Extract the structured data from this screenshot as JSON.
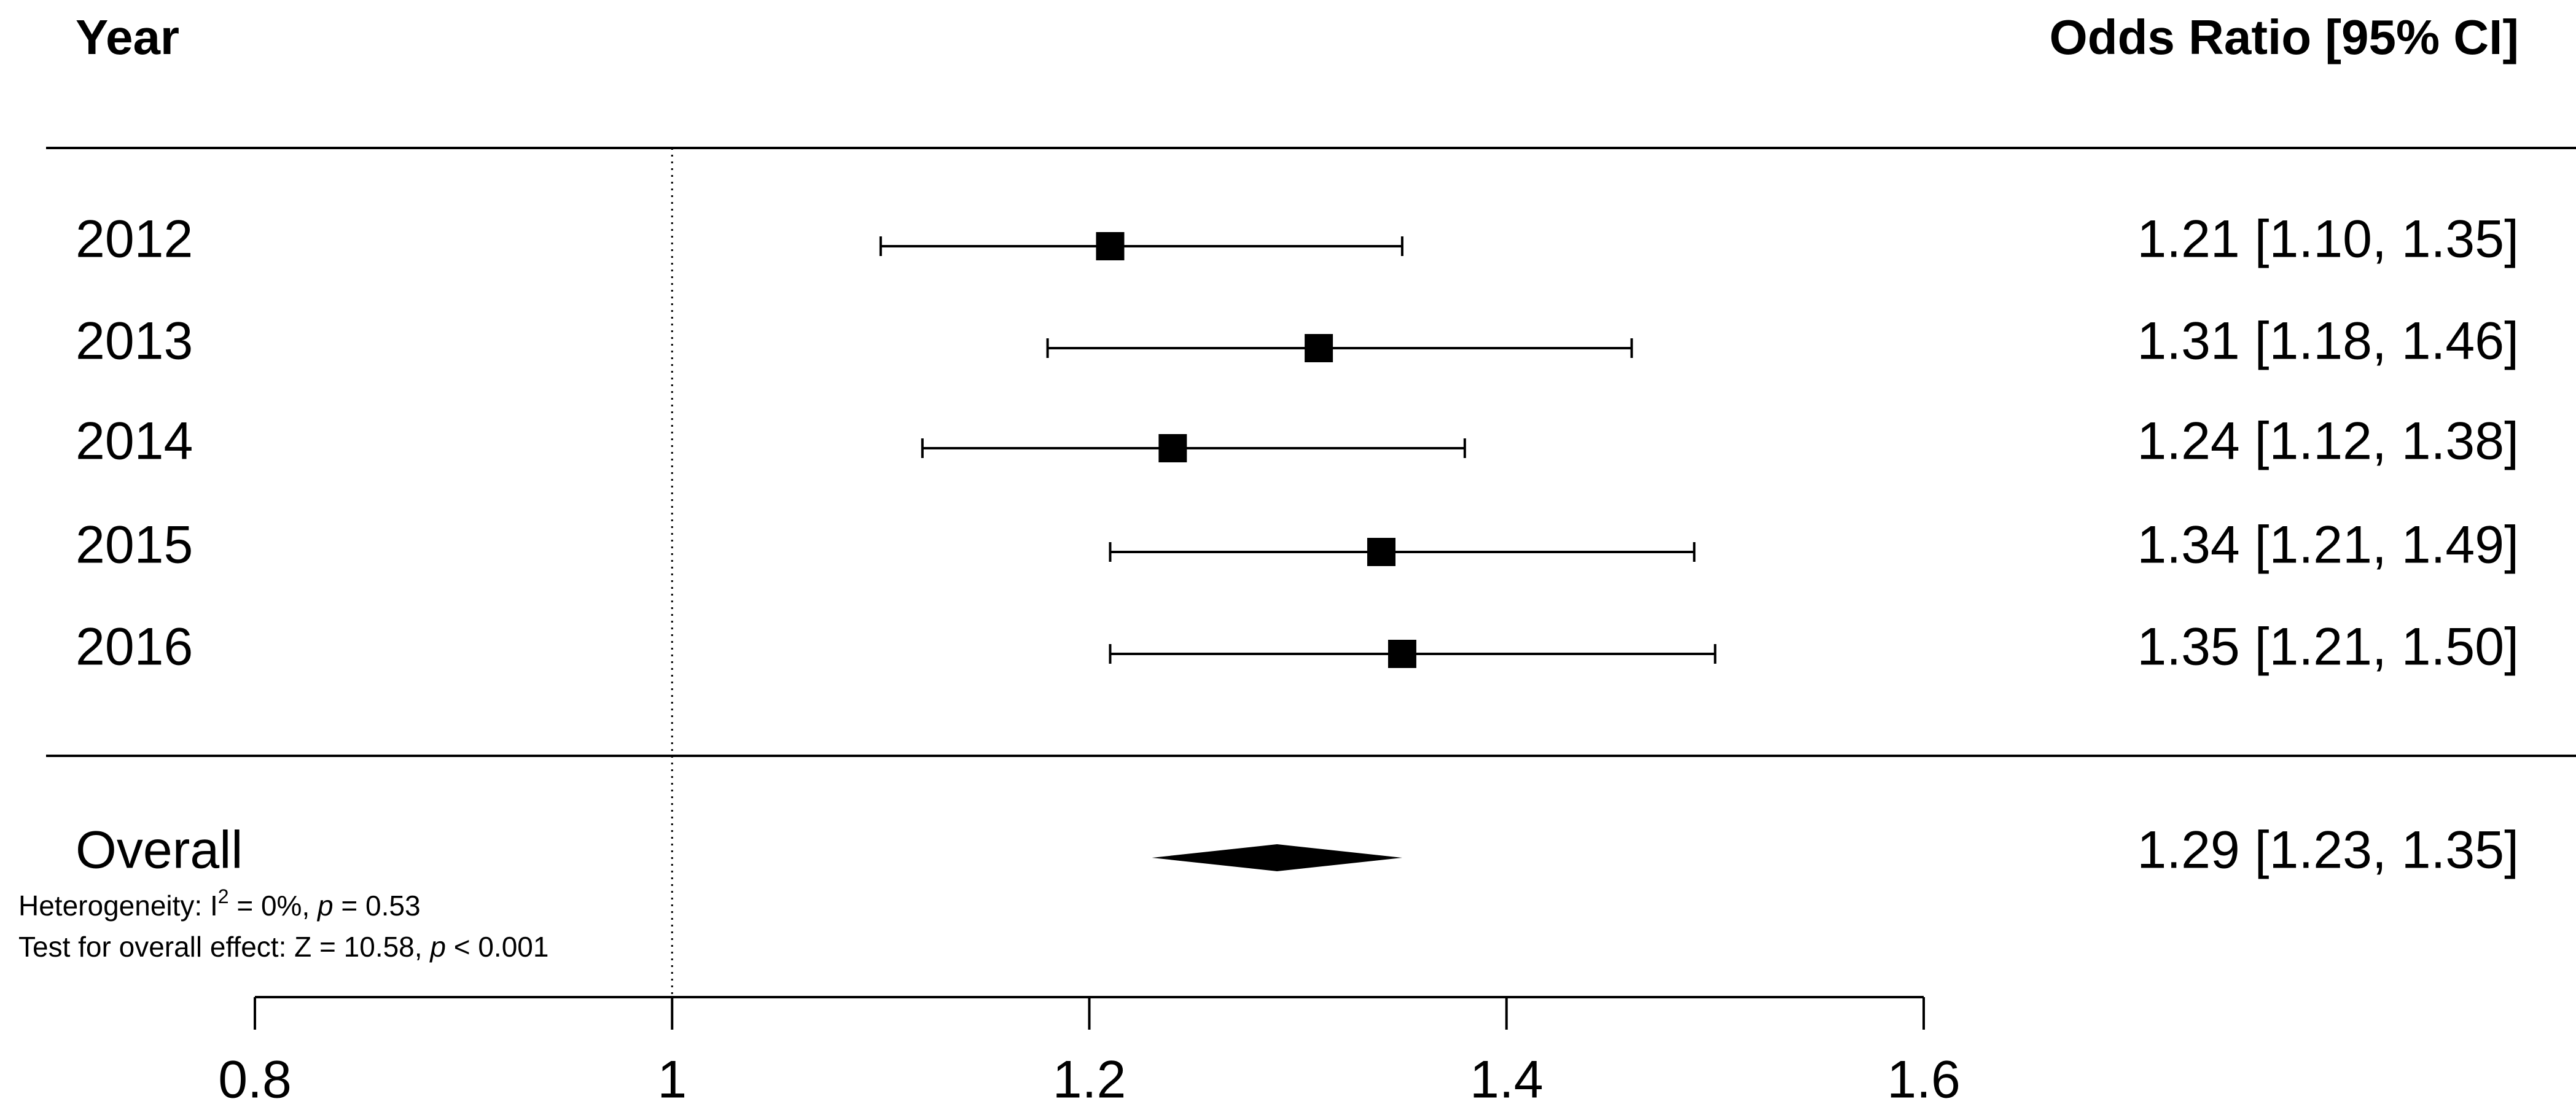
{
  "chart_data": {
    "type": "forest",
    "column_headers": [
      "Year",
      "Odds Ratio [95% CI]"
    ],
    "categories": [
      "2012",
      "2013",
      "2014",
      "2015",
      "2016"
    ],
    "values": [
      1.21,
      1.31,
      1.24,
      1.34,
      1.35
    ],
    "ci_lower": [
      1.1,
      1.18,
      1.12,
      1.21,
      1.21
    ],
    "ci_upper": [
      1.35,
      1.46,
      1.38,
      1.49,
      1.5
    ],
    "value_labels": [
      "1.21 [1.10, 1.35]",
      "1.31 [1.18, 1.46]",
      "1.24 [1.12, 1.38]",
      "1.34 [1.21, 1.49]",
      "1.35 [1.21, 1.50]"
    ],
    "overall": {
      "label": "Overall",
      "value": 1.29,
      "ci_lower": 1.23,
      "ci_upper": 1.35,
      "value_label": "1.29 [1.23, 1.35]"
    },
    "annotations": [
      [
        "Heterogeneity: I",
        "2",
        " = 0%, ",
        "p",
        " = 0.53"
      ],
      [
        "Test for overall effect: Z = 10.58, ",
        "p",
        " < 0.001"
      ]
    ],
    "xlim": [
      0.8,
      1.6
    ],
    "xticks": [
      0.8,
      1,
      1.2,
      1.4,
      1.6
    ],
    "reference_line": 1,
    "color": "#000000"
  }
}
